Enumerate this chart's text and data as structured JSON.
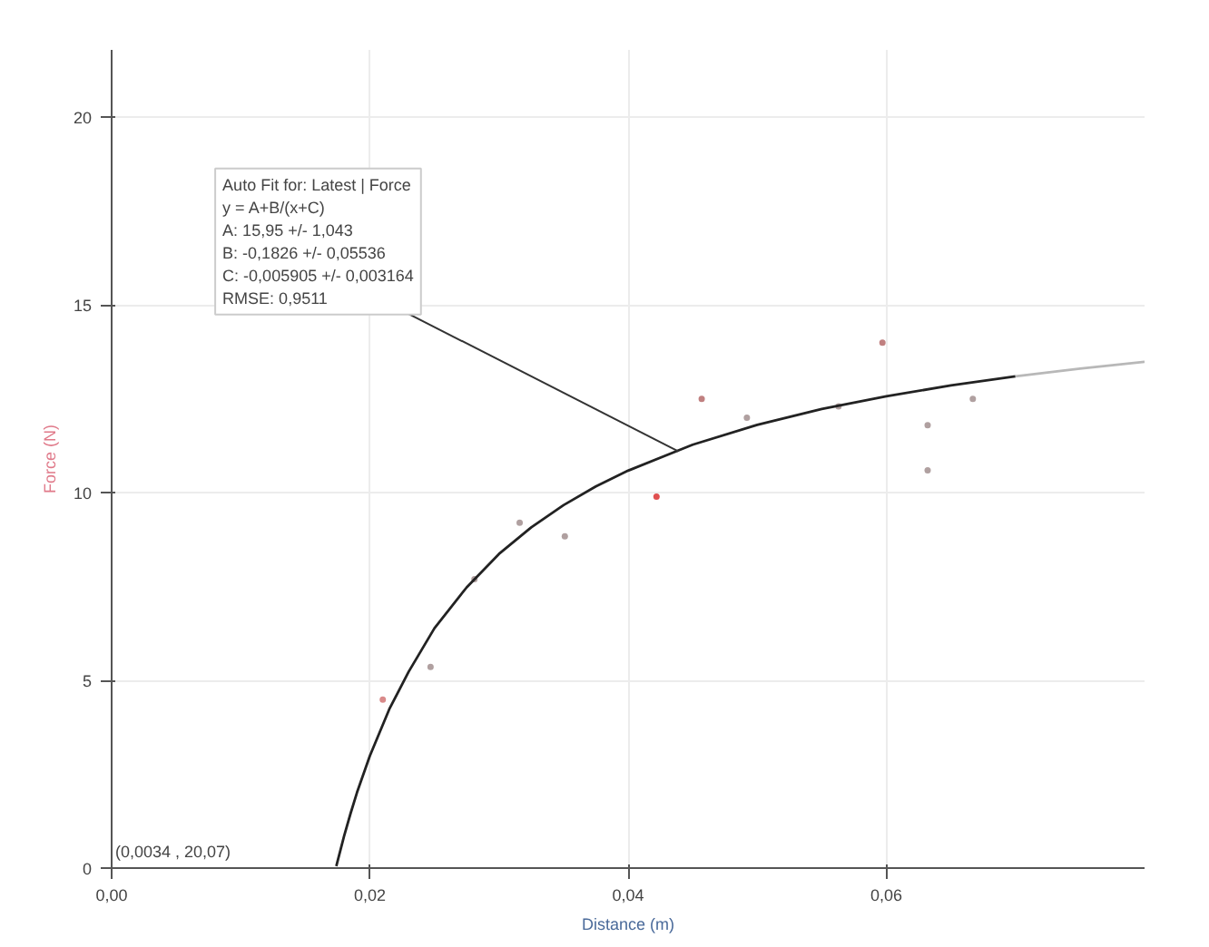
{
  "chart_data": {
    "type": "scatter",
    "xlabel": "Distance (m)",
    "ylabel": "Force (N)",
    "xlim": [
      0,
      0.08
    ],
    "ylim": [
      0,
      21.8
    ],
    "xticks": [
      {
        "value": 0,
        "label": "0,00"
      },
      {
        "value": 0.02,
        "label": "0,02"
      },
      {
        "value": 0.04,
        "label": "0,04"
      },
      {
        "value": 0.06,
        "label": "0,06"
      }
    ],
    "yticks": [
      0,
      5,
      10,
      15,
      20
    ],
    "grid": true,
    "series": [
      {
        "marker": "circle",
        "x": [
          0.021,
          0.0247,
          0.0281,
          0.0316,
          0.0351,
          0.0422,
          0.0457,
          0.0492,
          0.0563,
          0.0597,
          0.0632,
          0.0632,
          0.0667
        ],
        "values": [
          4.49,
          5.36,
          7.7,
          9.2,
          8.84,
          9.9,
          12.5,
          12.0,
          12.3,
          14.0,
          11.8,
          10.6,
          12.5
        ],
        "colors": [
          "#d98a8a",
          "#b0a0a0",
          "#b0a0a0",
          "#b0a0a0",
          "#b0a0a0",
          "#e05050",
          "#c08080",
          "#b0a0a0",
          "#b0a0a0",
          "#c08080",
          "#b0a0a0",
          "#b0a0a0",
          "#b0a0a0"
        ]
      },
      {
        "type": "line",
        "color": "#222222",
        "line_style": "solid",
        "x": [
          0.0174,
          0.018,
          0.0185,
          0.019,
          0.02,
          0.0215,
          0.023,
          0.025,
          0.0275,
          0.03,
          0.0325,
          0.035,
          0.0375,
          0.04,
          0.045,
          0.05,
          0.055,
          0.06,
          0.065,
          0.07
        ],
        "values": [
          0.05,
          0.85,
          1.45,
          2.01,
          2.99,
          4.23,
          5.23,
          6.39,
          7.48,
          8.37,
          9.08,
          9.67,
          10.17,
          10.59,
          11.28,
          11.81,
          12.23,
          12.57,
          12.86,
          13.1
        ]
      },
      {
        "type": "line",
        "color": "#b8b8b8",
        "line_style": "solid",
        "x": [
          0.07,
          0.075,
          0.08
        ],
        "values": [
          13.1,
          13.31,
          13.49
        ]
      }
    ],
    "annotations": [
      {
        "text": "Auto Fit for: Latest | Force\ny = A+B/(x+C)\nA: 15,95 +/- 1,043\nB: -0,1826 +/- 0,05536\nC: -0,005905 +/- 0,003164\nRMSE: 0,9511",
        "x": 0.0439,
        "y": 11.1
      },
      "(0,0034 , 20,07)"
    ]
  }
}
